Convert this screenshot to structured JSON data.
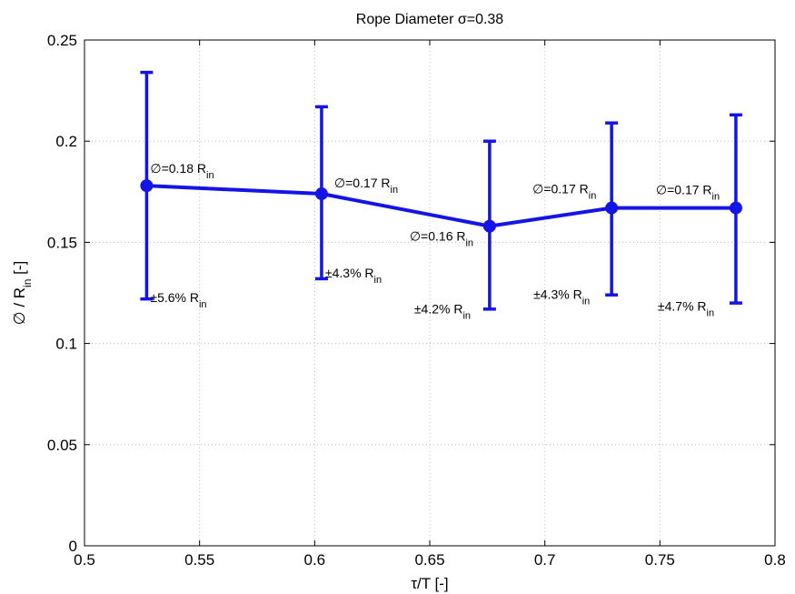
{
  "chart_data": {
    "type": "line",
    "title": "Rope Diameter σ=0.38",
    "xlabel": "τ/T [-]",
    "ylabel": {
      "pre": "∅ / R",
      "sub": "in",
      "post": " [-]"
    },
    "xlim": [
      0.5,
      0.8
    ],
    "ylim": [
      0,
      0.25
    ],
    "xticks": [
      0.5,
      0.55,
      0.6,
      0.65,
      0.7,
      0.75,
      0.8
    ],
    "xtick_labels": [
      "0.5",
      "0.55",
      "0.6",
      "0.65",
      "0.7",
      "0.75",
      "0.8"
    ],
    "yticks": [
      0,
      0.05,
      0.1,
      0.15,
      0.2,
      0.25
    ],
    "ytick_labels": [
      "0",
      "0.05",
      "0.1",
      "0.15",
      "0.2",
      "0.25"
    ],
    "grid": true,
    "line_color": "#1414e6",
    "points": [
      {
        "x": 0.527,
        "y": 0.178,
        "y_low": 0.122,
        "y_high": 0.234,
        "label": {
          "text": "∅=0.18 R",
          "sub": "in"
        },
        "err_label": {
          "text": "±5.6% R",
          "sub": "in"
        }
      },
      {
        "x": 0.603,
        "y": 0.174,
        "y_low": 0.132,
        "y_high": 0.217,
        "label": {
          "text": "∅=0.17 R",
          "sub": "in"
        },
        "err_label": {
          "text": "±4.3% R",
          "sub": "in"
        }
      },
      {
        "x": 0.676,
        "y": 0.158,
        "y_low": 0.117,
        "y_high": 0.2,
        "label": {
          "text": "∅=0.16 R",
          "sub": "in"
        },
        "err_label": {
          "text": "±4.2% R",
          "sub": "in"
        }
      },
      {
        "x": 0.729,
        "y": 0.167,
        "y_low": 0.124,
        "y_high": 0.209,
        "label": {
          "text": "∅=0.17 R",
          "sub": "in"
        },
        "err_label": {
          "text": "±4.3% R",
          "sub": "in"
        }
      },
      {
        "x": 0.783,
        "y": 0.167,
        "y_low": 0.12,
        "y_high": 0.213,
        "label": {
          "text": "∅=0.17 R",
          "sub": "in"
        },
        "err_label": {
          "text": "±4.7% R",
          "sub": "in"
        }
      }
    ]
  }
}
